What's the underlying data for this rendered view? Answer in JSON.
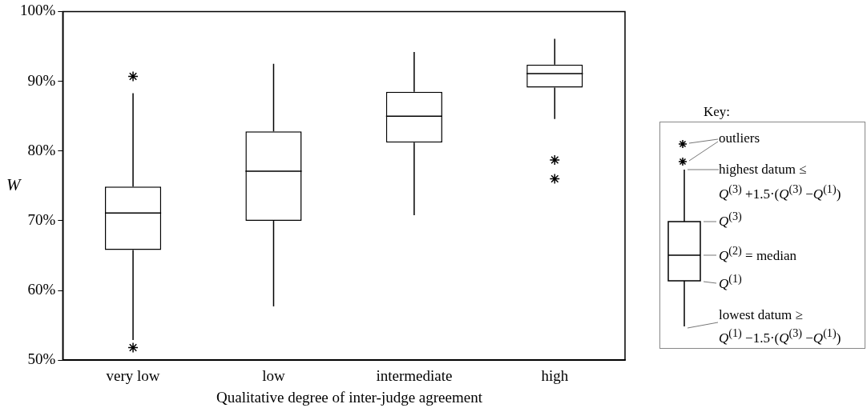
{
  "chart_data": {
    "type": "box",
    "xlabel": "Qualitative degree of inter-judge agreement",
    "ylabel": "W",
    "categories": [
      "very low",
      "low",
      "intermediate",
      "high"
    ],
    "boxes": [
      {
        "low": 52.9,
        "q1": 65.8,
        "median": 71.1,
        "q3": 74.9,
        "high": 88.3,
        "outliers": [
          90.7,
          51.8
        ]
      },
      {
        "low": 57.7,
        "q1": 70.0,
        "median": 77.1,
        "q3": 82.8,
        "high": 92.5
      },
      {
        "low": 70.8,
        "q1": 81.2,
        "median": 85.0,
        "q3": 88.5,
        "high": 94.2
      },
      {
        "low": 84.6,
        "q1": 89.1,
        "median": 91.1,
        "q3": 92.4,
        "high": 96.1,
        "outliers": [
          78.7,
          76.0
        ]
      }
    ],
    "color": "#000000",
    "marker": "star",
    "grid": false,
    "legend": false,
    "ylim": [
      50,
      100
    ],
    "yticks": [
      {
        "value": 50,
        "label": "50%"
      },
      {
        "value": 60,
        "label": "60%"
      },
      {
        "value": 70,
        "label": "70%"
      },
      {
        "value": 80,
        "label": "80%"
      },
      {
        "value": 90,
        "label": "90%"
      },
      {
        "value": 100,
        "label": "100%"
      }
    ],
    "annotations": [
      "Key:",
      "outliers",
      "highest datum ≤",
      "Q$^{(3)}$ +1.5·(Q$^{(3)}$ −Q$^{(1)}$)",
      "Q$^{(3)}$",
      "Q$^{(2)}$ = median",
      "Q$^{(1)}$",
      "lowest datum ≥",
      "Q$^{(1)}$ −1.5·(Q$^{(3)}$ −Q$^{(1)}$)"
    ]
  }
}
